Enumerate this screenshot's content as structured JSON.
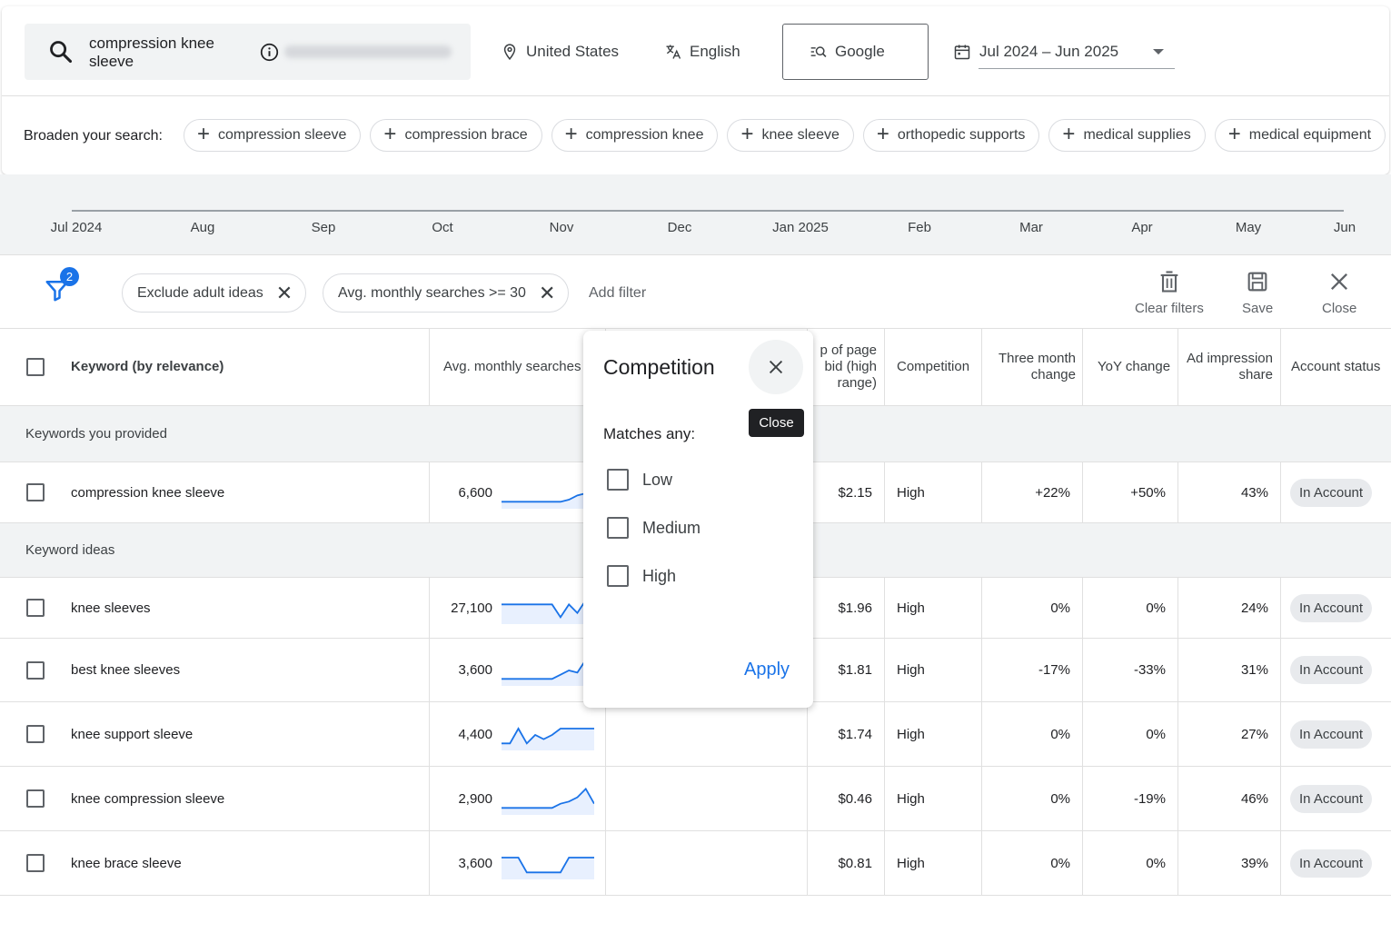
{
  "search": {
    "query": "compression knee sleeve"
  },
  "location": "United States",
  "language": "English",
  "network": "Google",
  "date_range": "Jul 2024 – Jun 2025",
  "broaden": {
    "label": "Broaden your search:",
    "chips": [
      "compression sleeve",
      "compression brace",
      "compression knee",
      "knee sleeve",
      "orthopedic supports",
      "medical supplies",
      "medical equipment"
    ]
  },
  "timeline": {
    "ticks": [
      "Jul 2024",
      "Aug",
      "Sep",
      "Oct",
      "Nov",
      "Dec",
      "Jan 2025",
      "Feb",
      "Mar",
      "Apr",
      "May",
      "Jun"
    ]
  },
  "filters": {
    "count": "2",
    "chips": [
      "Exclude adult ideas",
      "Avg. monthly searches >= 30"
    ],
    "add_filter": "Add filter",
    "clear_label": "Clear filters",
    "save_label": "Save",
    "close_label": "Close"
  },
  "table": {
    "headers": {
      "keyword": "Keyword (by relevance)",
      "avg_searches": "Avg. monthly searches",
      "top_bid_high": "p of page bid (high range)",
      "competition": "Competition",
      "three_month": "Three month change",
      "yoy": "YoY change",
      "ad_share": "Ad impression share",
      "account_status": "Account status"
    },
    "groups": {
      "provided": "Keywords you provided",
      "ideas": "Keyword ideas"
    },
    "provided_rows": [
      {
        "keyword": "compression knee sleeve",
        "searches": "6,600",
        "bid": "$2.15",
        "competition": "High",
        "three_month": "+22%",
        "yoy": "+50%",
        "share": "43%",
        "status": "In Account",
        "trend": [
          2,
          2,
          2,
          2,
          2,
          2,
          2,
          2,
          3,
          5,
          6,
          8
        ]
      }
    ],
    "idea_rows": [
      {
        "keyword": "knee sleeves",
        "searches": "27,100",
        "bid": "$1.96",
        "competition": "High",
        "three_month": "0%",
        "yoy": "0%",
        "share": "24%",
        "status": "In Account",
        "trend": [
          8,
          8,
          8,
          8,
          8,
          8,
          8,
          2,
          8,
          4,
          10,
          8
        ]
      },
      {
        "keyword": "best knee sleeves",
        "searches": "3,600",
        "bid": "$1.81",
        "competition": "High",
        "three_month": "-17%",
        "yoy": "-33%",
        "share": "31%",
        "status": "In Account",
        "trend": [
          2,
          2,
          2,
          2,
          2,
          2,
          2,
          4,
          6,
          5,
          11,
          8
        ]
      },
      {
        "keyword": "knee support sleeve",
        "searches": "4,400",
        "bid": "$1.74",
        "competition": "High",
        "three_month": "0%",
        "yoy": "0%",
        "share": "27%",
        "status": "In Account",
        "trend": [
          2,
          2,
          9,
          2,
          6,
          4,
          6,
          9,
          9,
          9,
          9,
          9
        ]
      },
      {
        "keyword": "knee compression sleeve",
        "searches": "2,900",
        "bid": "$0.46",
        "competition": "High",
        "three_month": "0%",
        "yoy": "-19%",
        "share": "46%",
        "status": "In Account",
        "trend": [
          2,
          2,
          2,
          2,
          2,
          2,
          2,
          4,
          5,
          7,
          11,
          4
        ]
      },
      {
        "keyword": "knee brace sleeve",
        "searches": "3,600",
        "bid": "$0.81",
        "competition": "High",
        "three_month": "0%",
        "yoy": "0%",
        "share": "39%",
        "status": "In Account",
        "trend": [
          9,
          9,
          9,
          2,
          2,
          2,
          2,
          2,
          9,
          9,
          9,
          9
        ]
      }
    ]
  },
  "popup": {
    "title": "Competition",
    "tooltip": "Close",
    "matches_label": "Matches any:",
    "options": [
      "Low",
      "Medium",
      "High"
    ],
    "apply_label": "Apply"
  },
  "colors": {
    "accent": "#1a73e8",
    "spark_fill": "#e8f0fe",
    "group_bg": "#f1f3f4"
  }
}
